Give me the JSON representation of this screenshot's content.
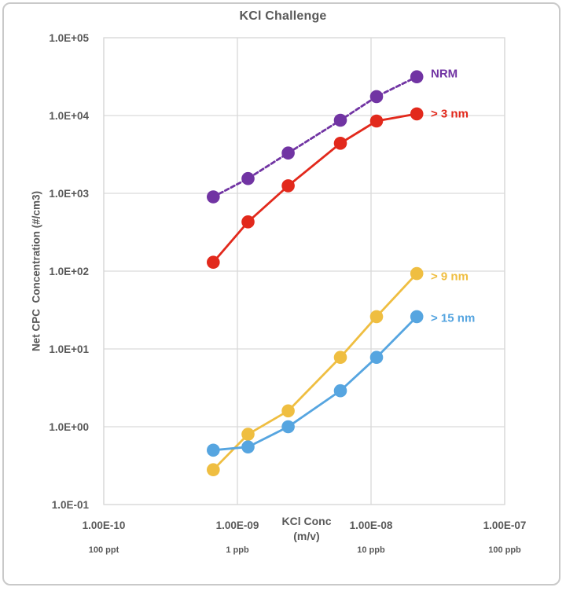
{
  "window": {
    "background": "#ffffff",
    "frame_border_color": "#c9c9c9"
  },
  "chart_data": {
    "type": "line",
    "title": "KCl Challenge",
    "title_color": "#595959",
    "text_color": "#595959",
    "gridline_color": "#d9d9d9",
    "grid": "on",
    "legend_position": "right-of-last-point",
    "x_axis": {
      "title_line1": "KCl Conc",
      "title_line2": "(m/v)",
      "scale": "log",
      "min": 1e-10,
      "max": 1e-07,
      "tick_values": [
        1e-10,
        1e-09,
        1e-08,
        1e-07
      ],
      "tick_labels": [
        "1.00E-10",
        "1.00E-09",
        "1.00E-08",
        "1.00E-07"
      ],
      "unit_labels": [
        "100 ppt",
        "1 ppb",
        "10 ppb",
        "100 ppb"
      ]
    },
    "y_axis": {
      "title": "Net CPC  Concentration (#/cm3)",
      "scale": "log",
      "min": 0.1,
      "max": 100000,
      "tick_values": [
        100000,
        10000,
        1000,
        100,
        10,
        1,
        0.1
      ],
      "tick_labels": [
        "1.0E+05",
        "1.0E+04",
        "1.0E+03",
        "1.0E+02",
        "1.0E+01",
        "1.0E+00",
        "1.0E-01"
      ]
    },
    "x": [
      6.6e-10,
      1.2e-09,
      2.4e-09,
      5.9e-09,
      1.1e-08,
      2.2e-08
    ],
    "series": [
      {
        "name": "NRM",
        "slug": "nrm",
        "color": "#7134A3",
        "line_style": "dashed",
        "label_dy": -4,
        "values": [
          900,
          1550,
          3300,
          8700,
          17500,
          31500
        ]
      },
      {
        "name": "> 3 nm",
        "slug": "gt-3nm",
        "color": "#E2291C",
        "line_style": "solid",
        "label_dy": 0,
        "values": [
          130,
          430,
          1250,
          4400,
          8500,
          10500
        ]
      },
      {
        "name": "> 9 nm",
        "slug": "gt-9nm",
        "color": "#EFBE41",
        "line_style": "solid",
        "label_dy": 4,
        "values": [
          0.28,
          0.8,
          1.6,
          7.8,
          26,
          93
        ]
      },
      {
        "name": "> 15 nm",
        "slug": "gt-15nm",
        "color": "#56A5E0",
        "line_style": "solid",
        "label_dy": 2,
        "values": [
          0.5,
          0.55,
          1.0,
          2.9,
          7.8,
          26
        ]
      }
    ]
  }
}
